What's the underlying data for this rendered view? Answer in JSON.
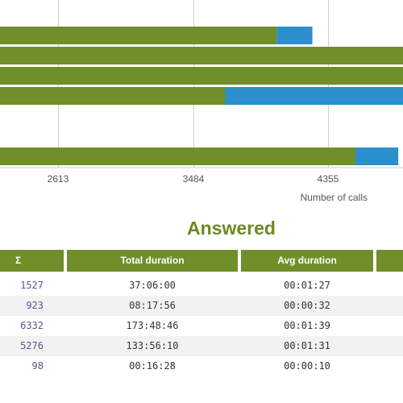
{
  "chart_data": {
    "type": "bar",
    "orientation": "horizontal",
    "stacked": true,
    "xlabel": "Number of calls",
    "xticks": [
      2613,
      3484,
      4355
    ],
    "series": [
      {
        "color": "#6e8f2a",
        "values": [
          4024,
          5000,
          5000,
          3692,
          null,
          4532
        ]
      },
      {
        "color": "#2b8fcd",
        "values": [
          230,
          0,
          0,
          1500,
          null,
          276
        ]
      }
    ],
    "grid": true
  },
  "section_title": "Answered",
  "table": {
    "headers": {
      "sigma": "Σ",
      "total": "Total duration",
      "avg": "Avg duration",
      "more": ""
    },
    "rows": [
      {
        "sigma": "1527",
        "total": "37:06:00",
        "avg": "00:01:27"
      },
      {
        "sigma": "923",
        "total": "08:17:56",
        "avg": "00:00:32"
      },
      {
        "sigma": "6332",
        "total": "173:48:46",
        "avg": "00:01:39"
      },
      {
        "sigma": "5276",
        "total": "133:56:10",
        "avg": "00:01:31"
      },
      {
        "sigma": "98",
        "total": "00:16:28",
        "avg": "00:00:10"
      }
    ]
  }
}
